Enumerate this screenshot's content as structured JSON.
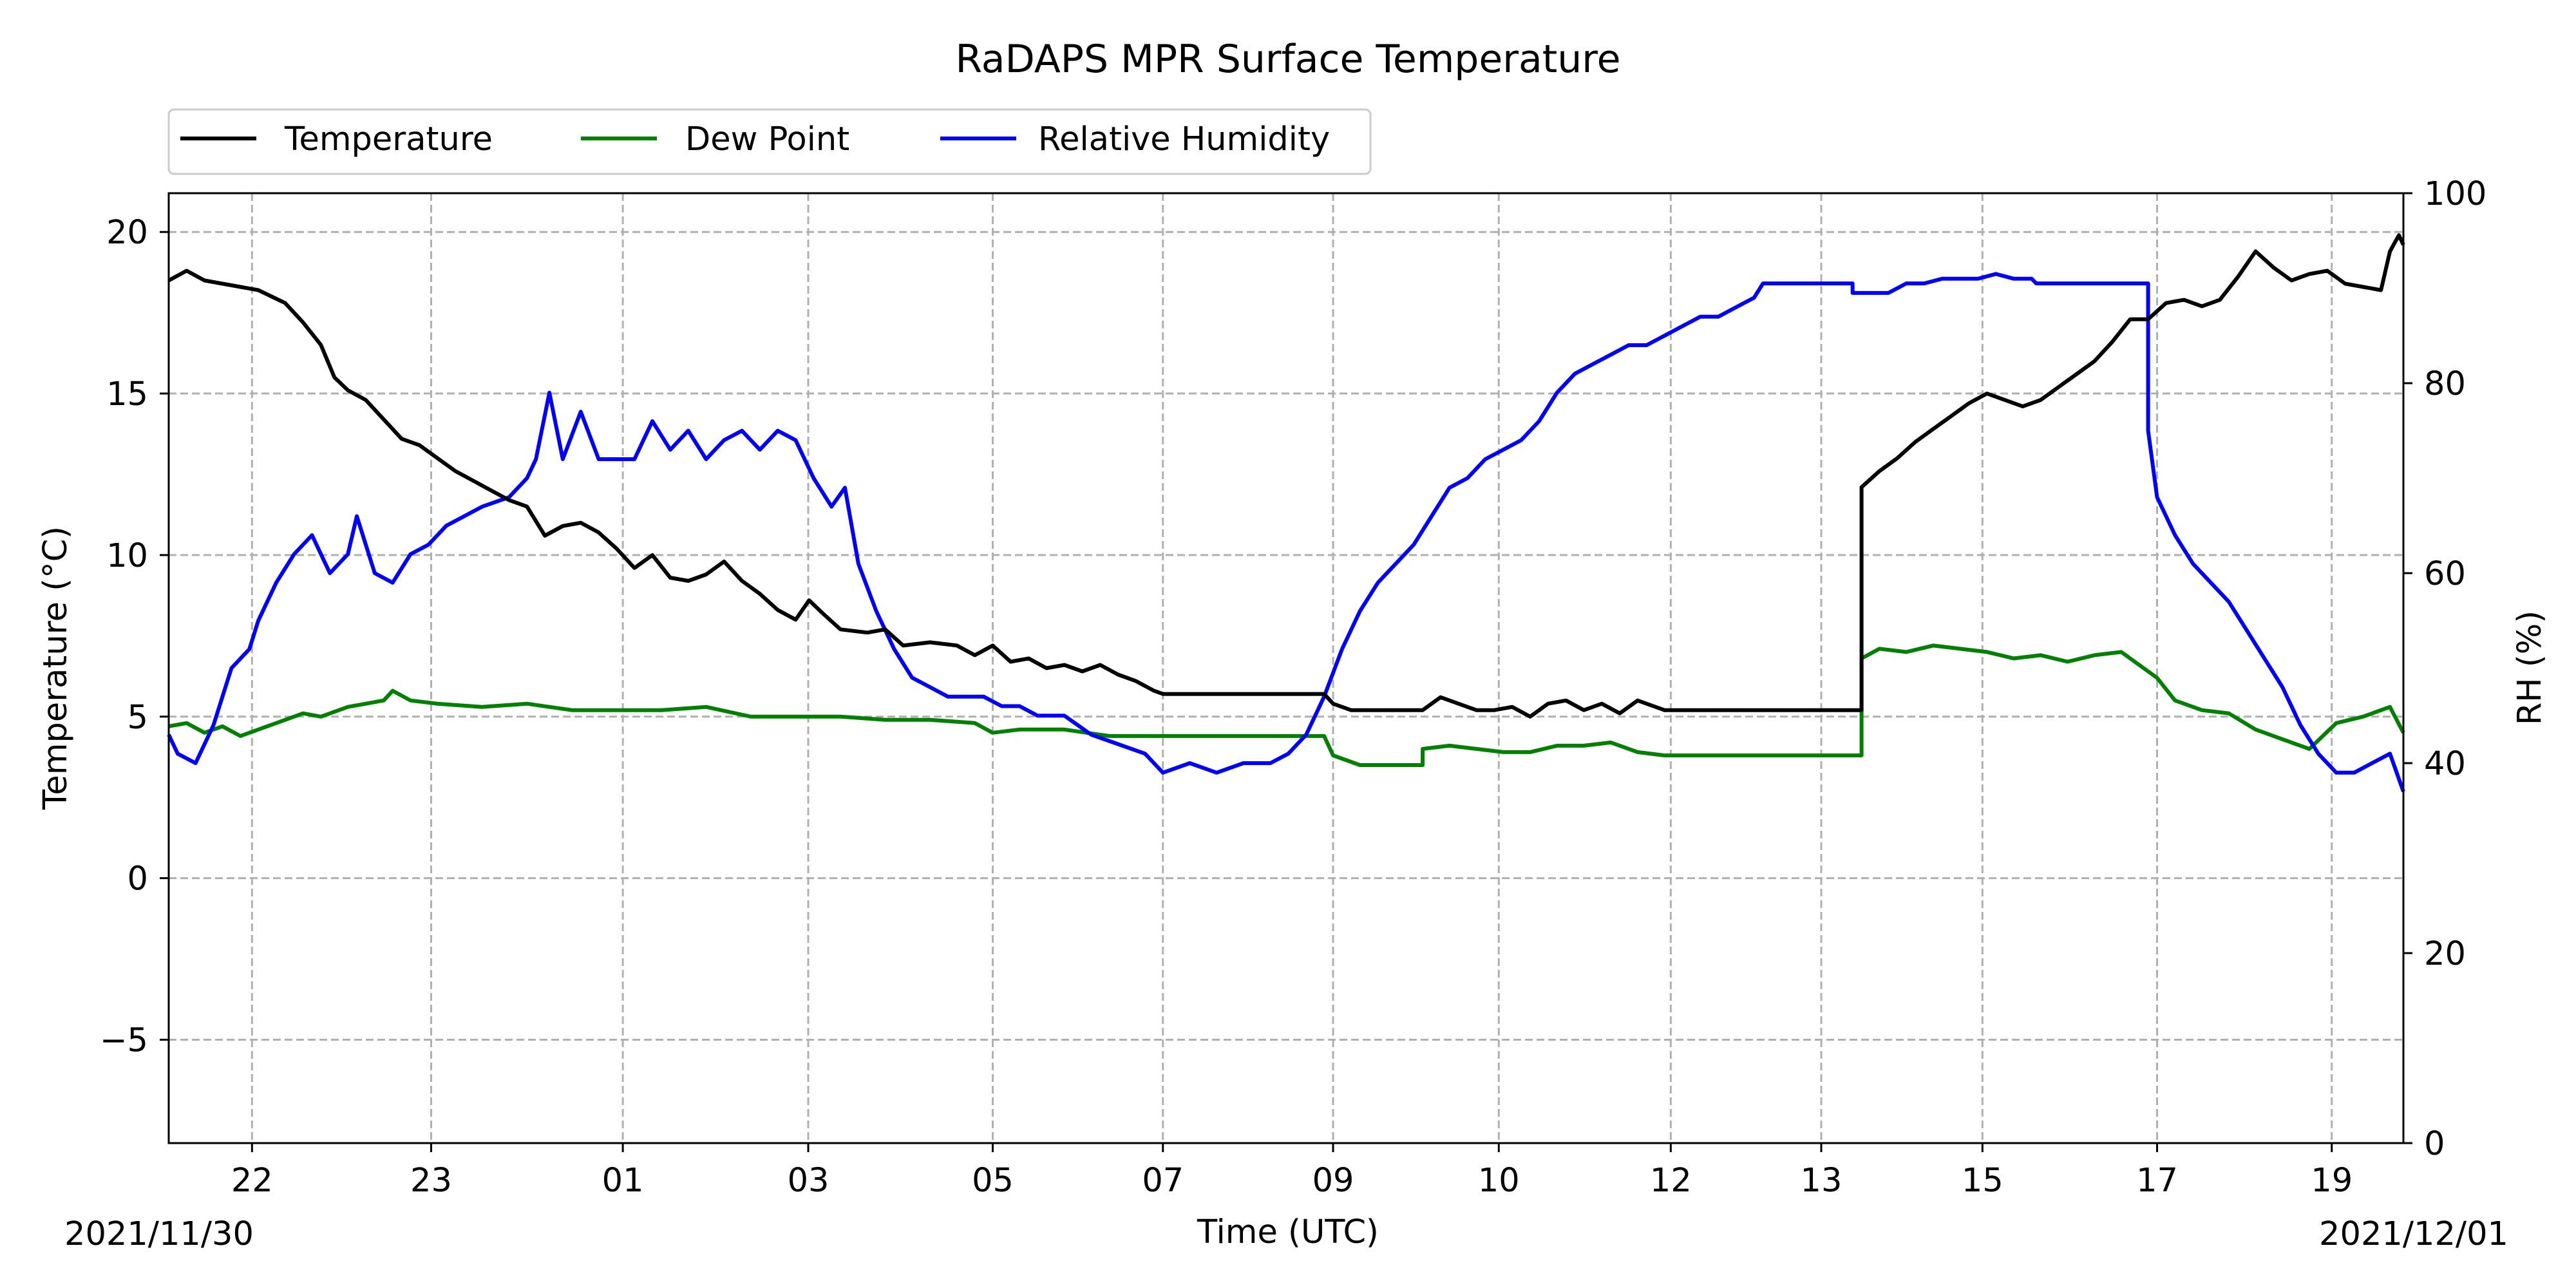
{
  "chart_data": {
    "type": "line",
    "title": "RaDAPS MPR Surface Temperature",
    "xlabel": "Time (UTC)",
    "ylabel": "Temperature ($^\\circ$C)",
    "ylabel_display": "Temperature (°C)",
    "y2label": "RH (%)",
    "xlim": [
      21.0,
      45.95
    ],
    "ylim": [
      -8.2,
      21.2
    ],
    "y2lim": [
      0,
      100
    ],
    "x_unit": "hours since 2021/11/30 00:00 UTC",
    "x_ticks": [
      {
        "x": 21.93,
        "label": "22"
      },
      {
        "x": 23.93,
        "label": "23"
      },
      {
        "x": 26.07,
        "label": "01"
      },
      {
        "x": 28.14,
        "label": "03"
      },
      {
        "x": 30.2,
        "label": "05"
      },
      {
        "x": 32.1,
        "label": "07"
      },
      {
        "x": 34.0,
        "label": "09"
      },
      {
        "x": 35.85,
        "label": "10"
      },
      {
        "x": 37.77,
        "label": "12"
      },
      {
        "x": 39.45,
        "label": "13"
      },
      {
        "x": 41.25,
        "label": "15"
      },
      {
        "x": 43.2,
        "label": "17"
      },
      {
        "x": 45.15,
        "label": "19"
      }
    ],
    "y_ticks": [
      20,
      15,
      10,
      5,
      0,
      -5
    ],
    "y_tick_labels": [
      "20",
      "15",
      "10",
      "5",
      "0",
      "−5"
    ],
    "y2_ticks": [
      100,
      80,
      60,
      40,
      20,
      0
    ],
    "date_left": "2021/11/30",
    "date_right": "2021/12/01",
    "grid": true,
    "legend_position": "top-left, above plot",
    "series": [
      {
        "name": "Temperature",
        "axis": "left",
        "color": "#000000",
        "points": [
          [
            21.0,
            18.5
          ],
          [
            21.2,
            18.8
          ],
          [
            21.4,
            18.5
          ],
          [
            21.6,
            18.4
          ],
          [
            21.8,
            18.3
          ],
          [
            22.0,
            18.2
          ],
          [
            22.3,
            17.8
          ],
          [
            22.5,
            17.2
          ],
          [
            22.7,
            16.5
          ],
          [
            22.85,
            15.5
          ],
          [
            23.0,
            15.1
          ],
          [
            23.2,
            14.8
          ],
          [
            23.4,
            14.2
          ],
          [
            23.6,
            13.6
          ],
          [
            23.8,
            13.4
          ],
          [
            24.0,
            13.0
          ],
          [
            24.2,
            12.6
          ],
          [
            24.4,
            12.3
          ],
          [
            24.6,
            12.0
          ],
          [
            24.8,
            11.7
          ],
          [
            25.0,
            11.5
          ],
          [
            25.2,
            10.6
          ],
          [
            25.4,
            10.9
          ],
          [
            25.6,
            11.0
          ],
          [
            25.8,
            10.7
          ],
          [
            26.0,
            10.2
          ],
          [
            26.2,
            9.6
          ],
          [
            26.4,
            10.0
          ],
          [
            26.6,
            9.3
          ],
          [
            26.8,
            9.2
          ],
          [
            27.0,
            9.4
          ],
          [
            27.2,
            9.8
          ],
          [
            27.4,
            9.2
          ],
          [
            27.6,
            8.8
          ],
          [
            27.8,
            8.3
          ],
          [
            28.0,
            8.0
          ],
          [
            28.15,
            8.6
          ],
          [
            28.3,
            8.2
          ],
          [
            28.5,
            7.7
          ],
          [
            28.8,
            7.6
          ],
          [
            29.0,
            7.7
          ],
          [
            29.2,
            7.2
          ],
          [
            29.5,
            7.3
          ],
          [
            29.8,
            7.2
          ],
          [
            30.0,
            6.9
          ],
          [
            30.2,
            7.2
          ],
          [
            30.4,
            6.7
          ],
          [
            30.6,
            6.8
          ],
          [
            30.8,
            6.5
          ],
          [
            31.0,
            6.6
          ],
          [
            31.2,
            6.4
          ],
          [
            31.4,
            6.6
          ],
          [
            31.6,
            6.3
          ],
          [
            31.8,
            6.1
          ],
          [
            32.0,
            5.8
          ],
          [
            32.1,
            5.7
          ],
          [
            33.9,
            5.7
          ],
          [
            34.0,
            5.4
          ],
          [
            34.2,
            5.2
          ],
          [
            35.0,
            5.2
          ],
          [
            35.2,
            5.6
          ],
          [
            35.4,
            5.4
          ],
          [
            35.6,
            5.2
          ],
          [
            35.8,
            5.2
          ],
          [
            36.0,
            5.3
          ],
          [
            36.2,
            5.0
          ],
          [
            36.4,
            5.4
          ],
          [
            36.6,
            5.5
          ],
          [
            36.8,
            5.2
          ],
          [
            37.0,
            5.4
          ],
          [
            37.2,
            5.1
          ],
          [
            37.4,
            5.5
          ],
          [
            37.6,
            5.3
          ],
          [
            37.7,
            5.2
          ],
          [
            39.9,
            5.2
          ],
          [
            39.9,
            12.1
          ],
          [
            40.1,
            12.6
          ],
          [
            40.3,
            13.0
          ],
          [
            40.5,
            13.5
          ],
          [
            40.7,
            13.9
          ],
          [
            40.9,
            14.3
          ],
          [
            41.1,
            14.7
          ],
          [
            41.3,
            15.0
          ],
          [
            41.5,
            14.8
          ],
          [
            41.7,
            14.6
          ],
          [
            41.9,
            14.8
          ],
          [
            42.1,
            15.2
          ],
          [
            42.3,
            15.6
          ],
          [
            42.5,
            16.0
          ],
          [
            42.7,
            16.6
          ],
          [
            42.9,
            17.3
          ],
          [
            43.1,
            17.3
          ],
          [
            43.3,
            17.8
          ],
          [
            43.5,
            17.9
          ],
          [
            43.7,
            17.7
          ],
          [
            43.9,
            17.9
          ],
          [
            44.1,
            18.6
          ],
          [
            44.3,
            19.4
          ],
          [
            44.5,
            18.9
          ],
          [
            44.7,
            18.5
          ],
          [
            44.9,
            18.7
          ],
          [
            45.1,
            18.8
          ],
          [
            45.3,
            18.4
          ],
          [
            45.5,
            18.3
          ],
          [
            45.7,
            18.2
          ],
          [
            45.8,
            19.4
          ],
          [
            45.9,
            19.9
          ],
          [
            45.95,
            19.6
          ]
        ]
      },
      {
        "name": "Dew Point",
        "axis": "left",
        "color": "#008000",
        "points": [
          [
            21.0,
            4.7
          ],
          [
            21.2,
            4.8
          ],
          [
            21.4,
            4.5
          ],
          [
            21.6,
            4.7
          ],
          [
            21.8,
            4.4
          ],
          [
            22.0,
            4.6
          ],
          [
            22.3,
            4.9
          ],
          [
            22.5,
            5.1
          ],
          [
            22.7,
            5.0
          ],
          [
            23.0,
            5.3
          ],
          [
            23.2,
            5.4
          ],
          [
            23.4,
            5.5
          ],
          [
            23.5,
            5.8
          ],
          [
            23.7,
            5.5
          ],
          [
            24.0,
            5.4
          ],
          [
            24.5,
            5.3
          ],
          [
            25.0,
            5.4
          ],
          [
            25.5,
            5.2
          ],
          [
            26.0,
            5.2
          ],
          [
            26.5,
            5.2
          ],
          [
            27.0,
            5.3
          ],
          [
            27.5,
            5.0
          ],
          [
            28.0,
            5.0
          ],
          [
            28.5,
            5.0
          ],
          [
            29.0,
            4.9
          ],
          [
            29.5,
            4.9
          ],
          [
            30.0,
            4.8
          ],
          [
            30.2,
            4.5
          ],
          [
            30.5,
            4.6
          ],
          [
            31.0,
            4.6
          ],
          [
            31.5,
            4.4
          ],
          [
            32.0,
            4.4
          ],
          [
            32.1,
            4.4
          ],
          [
            33.9,
            4.4
          ],
          [
            34.0,
            3.8
          ],
          [
            34.3,
            3.5
          ],
          [
            34.5,
            3.5
          ],
          [
            35.0,
            3.5
          ],
          [
            35.0,
            4.0
          ],
          [
            35.3,
            4.1
          ],
          [
            35.6,
            4.0
          ],
          [
            35.9,
            3.9
          ],
          [
            36.2,
            3.9
          ],
          [
            36.5,
            4.1
          ],
          [
            36.8,
            4.1
          ],
          [
            37.1,
            4.2
          ],
          [
            37.4,
            3.9
          ],
          [
            37.7,
            3.8
          ],
          [
            39.9,
            3.8
          ],
          [
            39.9,
            6.8
          ],
          [
            40.1,
            7.1
          ],
          [
            40.4,
            7.0
          ],
          [
            40.7,
            7.2
          ],
          [
            41.0,
            7.1
          ],
          [
            41.3,
            7.0
          ],
          [
            41.6,
            6.8
          ],
          [
            41.9,
            6.9
          ],
          [
            42.2,
            6.7
          ],
          [
            42.5,
            6.9
          ],
          [
            42.8,
            7.0
          ],
          [
            43.0,
            6.6
          ],
          [
            43.2,
            6.2
          ],
          [
            43.4,
            5.5
          ],
          [
            43.7,
            5.2
          ],
          [
            44.0,
            5.1
          ],
          [
            44.3,
            4.6
          ],
          [
            44.6,
            4.3
          ],
          [
            44.9,
            4.0
          ],
          [
            45.2,
            4.8
          ],
          [
            45.5,
            5.0
          ],
          [
            45.8,
            5.3
          ],
          [
            45.95,
            4.5
          ]
        ]
      },
      {
        "name": "Relative Humidity",
        "axis": "right",
        "color": "#0000ff",
        "points": [
          [
            21.0,
            43
          ],
          [
            21.1,
            41
          ],
          [
            21.3,
            40
          ],
          [
            21.5,
            44
          ],
          [
            21.7,
            50
          ],
          [
            21.9,
            52
          ],
          [
            22.0,
            55
          ],
          [
            22.2,
            59
          ],
          [
            22.4,
            62
          ],
          [
            22.6,
            64
          ],
          [
            22.8,
            60
          ],
          [
            23.0,
            62
          ],
          [
            23.1,
            66
          ],
          [
            23.3,
            60
          ],
          [
            23.5,
            59
          ],
          [
            23.7,
            62
          ],
          [
            23.9,
            63
          ],
          [
            24.1,
            65
          ],
          [
            24.3,
            66
          ],
          [
            24.5,
            67
          ],
          [
            24.8,
            68
          ],
          [
            25.0,
            70
          ],
          [
            25.1,
            72
          ],
          [
            25.25,
            79
          ],
          [
            25.4,
            72
          ],
          [
            25.6,
            77
          ],
          [
            25.8,
            72
          ],
          [
            26.0,
            72
          ],
          [
            26.2,
            72
          ],
          [
            26.4,
            76
          ],
          [
            26.6,
            73
          ],
          [
            26.8,
            75
          ],
          [
            27.0,
            72
          ],
          [
            27.2,
            74
          ],
          [
            27.4,
            75
          ],
          [
            27.6,
            73
          ],
          [
            27.8,
            75
          ],
          [
            28.0,
            74
          ],
          [
            28.2,
            70
          ],
          [
            28.4,
            67
          ],
          [
            28.55,
            69
          ],
          [
            28.7,
            61
          ],
          [
            28.9,
            56
          ],
          [
            29.1,
            52
          ],
          [
            29.3,
            49
          ],
          [
            29.5,
            48
          ],
          [
            29.7,
            47
          ],
          [
            29.9,
            47
          ],
          [
            30.1,
            47
          ],
          [
            30.3,
            46
          ],
          [
            30.5,
            46
          ],
          [
            30.7,
            45
          ],
          [
            31.0,
            45
          ],
          [
            31.3,
            43
          ],
          [
            31.6,
            42
          ],
          [
            31.9,
            41
          ],
          [
            32.1,
            39
          ],
          [
            32.4,
            40
          ],
          [
            32.7,
            39
          ],
          [
            33.0,
            40
          ],
          [
            33.3,
            40
          ],
          [
            33.5,
            41
          ],
          [
            33.7,
            43
          ],
          [
            33.9,
            47
          ],
          [
            34.1,
            52
          ],
          [
            34.3,
            56
          ],
          [
            34.5,
            59
          ],
          [
            34.7,
            61
          ],
          [
            34.9,
            63
          ],
          [
            35.1,
            66
          ],
          [
            35.3,
            69
          ],
          [
            35.5,
            70
          ],
          [
            35.7,
            72
          ],
          [
            35.9,
            73
          ],
          [
            36.1,
            74
          ],
          [
            36.3,
            76
          ],
          [
            36.5,
            79
          ],
          [
            36.7,
            81
          ],
          [
            36.9,
            82
          ],
          [
            37.1,
            83
          ],
          [
            37.3,
            84
          ],
          [
            37.5,
            84
          ],
          [
            37.7,
            85
          ],
          [
            37.9,
            86
          ],
          [
            38.1,
            87
          ],
          [
            38.3,
            87
          ],
          [
            38.5,
            88
          ],
          [
            38.7,
            89
          ],
          [
            38.8,
            90.5
          ],
          [
            39.8,
            90.5
          ],
          [
            39.8,
            89.5
          ],
          [
            40.2,
            89.5
          ],
          [
            40.4,
            90.5
          ],
          [
            40.6,
            90.5
          ],
          [
            40.8,
            91
          ],
          [
            41.0,
            91
          ],
          [
            41.2,
            91
          ],
          [
            41.4,
            91.5
          ],
          [
            41.6,
            91
          ],
          [
            41.8,
            91
          ],
          [
            41.85,
            90.5
          ],
          [
            43.1,
            90.5
          ],
          [
            43.1,
            75
          ],
          [
            43.2,
            68
          ],
          [
            43.4,
            64
          ],
          [
            43.6,
            61
          ],
          [
            43.8,
            59
          ],
          [
            44.0,
            57
          ],
          [
            44.2,
            54
          ],
          [
            44.4,
            51
          ],
          [
            44.6,
            48
          ],
          [
            44.8,
            44
          ],
          [
            45.0,
            41
          ],
          [
            45.2,
            39
          ],
          [
            45.4,
            39
          ],
          [
            45.6,
            40
          ],
          [
            45.8,
            41
          ],
          [
            45.95,
            37
          ]
        ]
      }
    ]
  }
}
